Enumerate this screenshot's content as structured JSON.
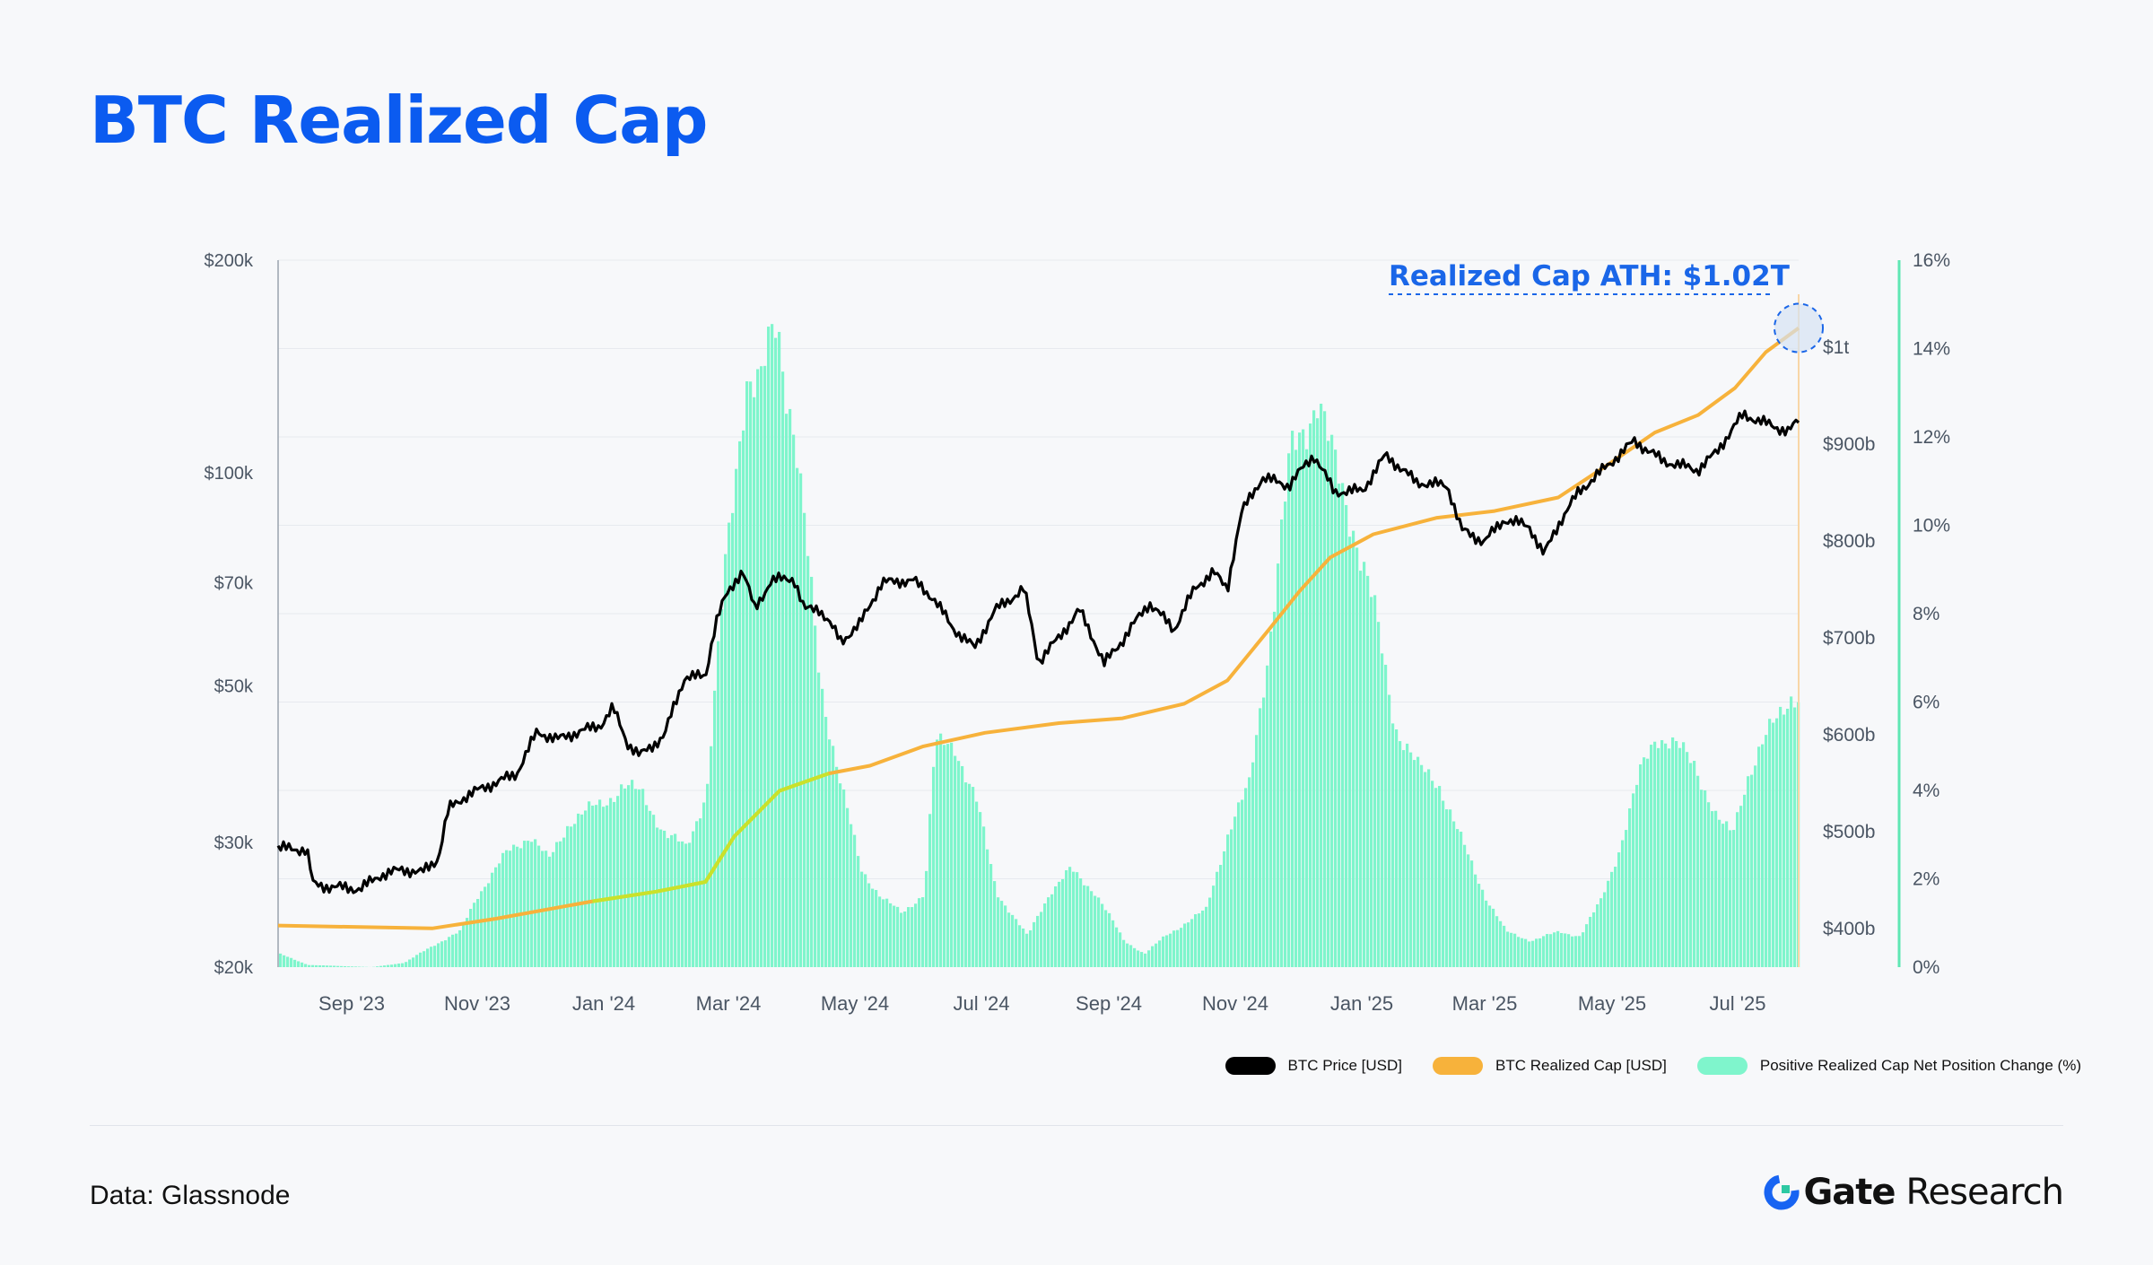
{
  "page": {
    "title": "BTC Realized Cap",
    "source": "Data: Glassnode",
    "brand_name": "Gate",
    "brand_sub": "Research"
  },
  "colors": {
    "title": "#0b5bf0",
    "price": "#000000",
    "realized": "#f7b23b",
    "realized_low": "#c9e22a",
    "bars": "#7ff5cc",
    "annotation": "#1a66e8",
    "right_axis": "#5fe7b4"
  },
  "chart_data": {
    "type": "line",
    "annotation": "Realized Cap ATH: $1.02T",
    "legend_placement": "bottom-right",
    "grid": true,
    "x_labels": [
      "Sep '23",
      "Nov '23",
      "Jan '24",
      "Mar '24",
      "May '24",
      "Jul '24",
      "Sep '24",
      "Nov '24",
      "Jan '25",
      "Mar '25",
      "May '25",
      "Jul '25"
    ],
    "x_range": [
      "2023-08-01",
      "2025-08-10"
    ],
    "y_left": {
      "scale": "log",
      "ylim": [
        20000,
        200000
      ],
      "ticks": [
        {
          "v": 200000,
          "label": "$200k"
        },
        {
          "v": 100000,
          "label": "$100k"
        },
        {
          "v": 70000,
          "label": "$70k"
        },
        {
          "v": 50000,
          "label": "$50k"
        },
        {
          "v": 30000,
          "label": "$30k"
        },
        {
          "v": 20000,
          "label": "$20k"
        }
      ]
    },
    "y_mid": {
      "ylim": [
        360,
        1090
      ],
      "ticks": [
        {
          "v": 1000,
          "label": "$1t"
        },
        {
          "v": 900,
          "label": "$900b"
        },
        {
          "v": 800,
          "label": "$800b"
        },
        {
          "v": 700,
          "label": "$700b"
        },
        {
          "v": 600,
          "label": "$600b"
        },
        {
          "v": 500,
          "label": "$500b"
        },
        {
          "v": 400,
          "label": "$400b"
        }
      ]
    },
    "y_right": {
      "ylim": [
        0,
        16
      ],
      "ticks": [
        {
          "v": 16,
          "label": "16%"
        },
        {
          "v": 14,
          "label": "14%"
        },
        {
          "v": 12,
          "label": "12%"
        },
        {
          "v": 10,
          "label": "10%"
        },
        {
          "v": 8,
          "label": "8%"
        },
        {
          "v": 6,
          "label": "6%"
        },
        {
          "v": 4,
          "label": "4%"
        },
        {
          "v": 2,
          "label": "2%"
        },
        {
          "v": 0,
          "label": "0%"
        }
      ]
    },
    "series": [
      {
        "name": "BTC Price [USD]",
        "axis": "left",
        "points": [
          [
            "2023-08-01",
            29500
          ],
          [
            "2023-08-15",
            29300
          ],
          [
            "2023-08-18",
            26200
          ],
          [
            "2023-08-25",
            26000
          ],
          [
            "2023-09-10",
            25800
          ],
          [
            "2023-09-20",
            27000
          ],
          [
            "2023-10-01",
            27500
          ],
          [
            "2023-10-10",
            27200
          ],
          [
            "2023-10-18",
            28500
          ],
          [
            "2023-10-23",
            33500
          ],
          [
            "2023-11-01",
            35000
          ],
          [
            "2023-11-15",
            36500
          ],
          [
            "2023-11-25",
            37500
          ],
          [
            "2023-12-05",
            43000
          ],
          [
            "2023-12-15",
            42000
          ],
          [
            "2023-12-25",
            43000
          ],
          [
            "2024-01-05",
            44000
          ],
          [
            "2024-01-11",
            46500
          ],
          [
            "2024-01-18",
            41500
          ],
          [
            "2024-01-24",
            39800
          ],
          [
            "2024-02-05",
            42500
          ],
          [
            "2024-02-15",
            51500
          ],
          [
            "2024-02-25",
            51500
          ],
          [
            "2024-03-01",
            61500
          ],
          [
            "2024-03-05",
            66000
          ],
          [
            "2024-03-14",
            73000
          ],
          [
            "2024-03-20",
            64000
          ],
          [
            "2024-03-28",
            70500
          ],
          [
            "2024-04-08",
            71000
          ],
          [
            "2024-04-13",
            64000
          ],
          [
            "2024-04-20",
            64500
          ],
          [
            "2024-05-01",
            57800
          ],
          [
            "2024-05-10",
            61000
          ],
          [
            "2024-05-21",
            70000
          ],
          [
            "2024-06-05",
            70500
          ],
          [
            "2024-06-15",
            66500
          ],
          [
            "2024-06-24",
            60500
          ],
          [
            "2024-07-05",
            56500
          ],
          [
            "2024-07-15",
            64000
          ],
          [
            "2024-07-29",
            68500
          ],
          [
            "2024-08-05",
            54000
          ],
          [
            "2024-08-15",
            58500
          ],
          [
            "2024-08-25",
            64000
          ],
          [
            "2024-09-06",
            53700
          ],
          [
            "2024-09-15",
            58000
          ],
          [
            "2024-09-28",
            65500
          ],
          [
            "2024-10-10",
            60000
          ],
          [
            "2024-10-20",
            68500
          ],
          [
            "2024-10-29",
            72500
          ],
          [
            "2024-11-05",
            68500
          ],
          [
            "2024-11-12",
            88000
          ],
          [
            "2024-11-22",
            98500
          ],
          [
            "2024-12-05",
            96000
          ],
          [
            "2024-12-17",
            106000
          ],
          [
            "2024-12-27",
            94000
          ],
          [
            "2025-01-10",
            94500
          ],
          [
            "2025-01-21",
            106000
          ],
          [
            "2025-02-05",
            97000
          ],
          [
            "2025-02-20",
            96000
          ],
          [
            "2025-02-27",
            83000
          ],
          [
            "2025-03-10",
            80000
          ],
          [
            "2025-03-20",
            86000
          ],
          [
            "2025-04-01",
            84000
          ],
          [
            "2025-04-08",
            76500
          ],
          [
            "2025-04-15",
            84500
          ],
          [
            "2025-04-25",
            94000
          ],
          [
            "2025-05-10",
            103000
          ],
          [
            "2025-05-22",
            111000
          ],
          [
            "2025-06-05",
            104000
          ],
          [
            "2025-06-22",
            101000
          ],
          [
            "2025-07-01",
            107000
          ],
          [
            "2025-07-14",
            121000
          ],
          [
            "2025-07-25",
            117500
          ],
          [
            "2025-08-05",
            114500
          ],
          [
            "2025-08-10",
            118500
          ]
        ]
      },
      {
        "name": "BTC Realized Cap [USD]",
        "axis": "mid",
        "unit": "billion USD",
        "points": [
          [
            "2023-08-01",
            403
          ],
          [
            "2023-10-15",
            400
          ],
          [
            "2023-11-15",
            410
          ],
          [
            "2024-01-01",
            428
          ],
          [
            "2024-02-01",
            438
          ],
          [
            "2024-02-25",
            448
          ],
          [
            "2024-03-10",
            495
          ],
          [
            "2024-04-01",
            542
          ],
          [
            "2024-04-25",
            560
          ],
          [
            "2024-05-15",
            568
          ],
          [
            "2024-06-10",
            588
          ],
          [
            "2024-07-10",
            602
          ],
          [
            "2024-08-15",
            612
          ],
          [
            "2024-09-15",
            617
          ],
          [
            "2024-10-15",
            632
          ],
          [
            "2024-11-05",
            656
          ],
          [
            "2024-11-25",
            708
          ],
          [
            "2024-12-10",
            748
          ],
          [
            "2024-12-25",
            783
          ],
          [
            "2025-01-15",
            807
          ],
          [
            "2025-02-15",
            824
          ],
          [
            "2025-03-15",
            831
          ],
          [
            "2025-04-15",
            845
          ],
          [
            "2025-05-10",
            880
          ],
          [
            "2025-06-01",
            912
          ],
          [
            "2025-06-22",
            930
          ],
          [
            "2025-07-10",
            958
          ],
          [
            "2025-07-25",
            995
          ],
          [
            "2025-08-10",
            1020
          ]
        ]
      },
      {
        "name": "Positive Realized Cap Net Position Change (%)",
        "axis": "right",
        "type": "area",
        "points": [
          [
            "2023-08-01",
            0.3
          ],
          [
            "2023-08-15",
            0.05
          ],
          [
            "2023-09-15",
            0
          ],
          [
            "2023-10-01",
            0.1
          ],
          [
            "2023-10-15",
            0.5
          ],
          [
            "2023-10-28",
            0.8
          ],
          [
            "2023-11-05",
            1.6
          ],
          [
            "2023-11-20",
            2.6
          ],
          [
            "2023-12-01",
            3.0
          ],
          [
            "2023-12-10",
            2.4
          ],
          [
            "2023-12-20",
            3.3
          ],
          [
            "2024-01-05",
            3.7
          ],
          [
            "2024-01-15",
            4.1
          ],
          [
            "2024-01-25",
            3.9
          ],
          [
            "2024-02-05",
            3.0
          ],
          [
            "2024-02-15",
            2.7
          ],
          [
            "2024-02-25",
            4.0
          ],
          [
            "2024-03-05",
            9.0
          ],
          [
            "2024-03-15",
            13.5
          ],
          [
            "2024-03-22",
            13.0
          ],
          [
            "2024-03-30",
            14.7
          ],
          [
            "2024-04-08",
            12.0
          ],
          [
            "2024-04-20",
            6.5
          ],
          [
            "2024-05-01",
            4.0
          ],
          [
            "2024-05-10",
            2.2
          ],
          [
            "2024-05-20",
            1.6
          ],
          [
            "2024-05-30",
            1.2
          ],
          [
            "2024-06-10",
            1.7
          ],
          [
            "2024-06-15",
            5.0
          ],
          [
            "2024-06-25",
            5.0
          ],
          [
            "2024-07-05",
            3.8
          ],
          [
            "2024-07-15",
            1.7
          ],
          [
            "2024-07-30",
            0.7
          ],
          [
            "2024-08-10",
            1.7
          ],
          [
            "2024-08-20",
            2.2
          ],
          [
            "2024-09-01",
            1.7
          ],
          [
            "2024-09-15",
            0.6
          ],
          [
            "2024-09-25",
            0.3
          ],
          [
            "2024-10-05",
            0.7
          ],
          [
            "2024-10-15",
            1.0
          ],
          [
            "2024-10-25",
            1.3
          ],
          [
            "2024-11-05",
            3.1
          ],
          [
            "2024-11-15",
            4.1
          ],
          [
            "2024-11-25",
            7.5
          ],
          [
            "2024-12-05",
            11.5
          ],
          [
            "2024-12-18",
            13.0
          ],
          [
            "2024-12-25",
            11.5
          ],
          [
            "2025-01-05",
            10.0
          ],
          [
            "2025-01-15",
            8.0
          ],
          [
            "2025-01-25",
            5.5
          ],
          [
            "2025-02-05",
            4.5
          ],
          [
            "2025-02-15",
            4.2
          ],
          [
            "2025-02-25",
            3.0
          ],
          [
            "2025-03-10",
            1.6
          ],
          [
            "2025-03-20",
            0.8
          ],
          [
            "2025-04-01",
            0.6
          ],
          [
            "2025-04-15",
            0.8
          ],
          [
            "2025-04-25",
            0.7
          ],
          [
            "2025-05-05",
            1.5
          ],
          [
            "2025-05-15",
            2.8
          ],
          [
            "2025-05-25",
            4.5
          ],
          [
            "2025-06-01",
            5.3
          ],
          [
            "2025-06-10",
            5.0
          ],
          [
            "2025-06-20",
            4.6
          ],
          [
            "2025-07-01",
            3.3
          ],
          [
            "2025-07-08",
            3.0
          ],
          [
            "2025-07-15",
            4.3
          ],
          [
            "2025-07-25",
            5.2
          ],
          [
            "2025-08-05",
            6.2
          ],
          [
            "2025-08-10",
            6.1
          ]
        ]
      }
    ]
  }
}
